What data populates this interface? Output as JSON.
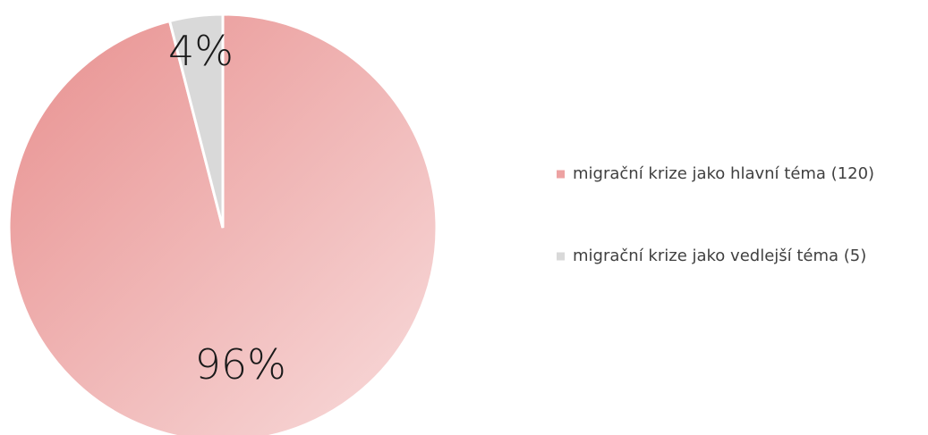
{
  "chart_data": {
    "type": "pie",
    "categories": [
      "migrační krize jako hlavní téma (120)",
      "migrační krize jako vedlejší téma (5)"
    ],
    "values": [
      96,
      4
    ],
    "value_labels": [
      "96%",
      "4%"
    ],
    "colors": [
      "#eda2a2",
      "#d9d9d9"
    ],
    "legend": "right"
  }
}
